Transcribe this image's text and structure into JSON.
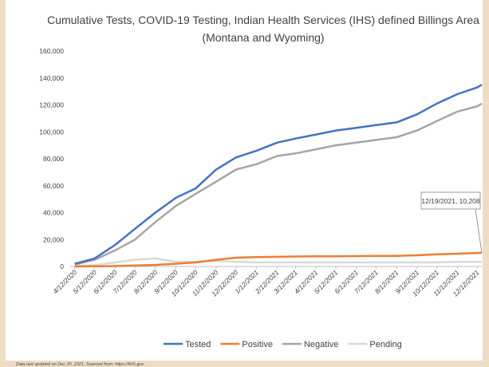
{
  "chart_data": {
    "type": "line",
    "title_lines": [
      "Cumulative Tests, COVID-19 Testing, Indian Health Services (IHS) defined Billings Area",
      "(Montana and Wyoming)"
    ],
    "x": [
      "4/12/2020",
      "5/12/2020",
      "6/12/2020",
      "7/12/2020",
      "8/12/2020",
      "9/12/2020",
      "10/12/2020",
      "11/12/2020",
      "12/12/2020",
      "1/12/2021",
      "2/12/2021",
      "3/12/2021",
      "4/12/2021",
      "5/12/2021",
      "6/12/2021",
      "7/12/2021",
      "8/12/2021",
      "9/12/2021",
      "10/12/2021",
      "11/12/2021",
      "12/12/2021",
      "12/19/2021"
    ],
    "xlim": [
      "4/5/2020",
      "12/19/2021"
    ],
    "xticks": [
      "4/12/2020",
      "5/12/2020",
      "6/12/2020",
      "7/12/2020",
      "8/12/2020",
      "9/12/2020",
      "10/12/2020",
      "11/12/2020",
      "12/12/2020",
      "1/12/2021",
      "2/12/2021",
      "3/12/2021",
      "4/12/2021",
      "5/12/2021",
      "6/12/2021",
      "7/12/2021",
      "8/12/2021",
      "9/12/2021",
      "10/12/2021",
      "11/12/2021",
      "12/12/2021"
    ],
    "series": [
      {
        "name": "Tested",
        "color": "#4472c4",
        "values": [
          2000,
          6000,
          16000,
          28000,
          40000,
          51000,
          58000,
          72000,
          81000,
          86000,
          92000,
          95000,
          98000,
          101000,
          103000,
          105000,
          107000,
          113000,
          121000,
          128000,
          133000,
          135000
        ]
      },
      {
        "name": "Positive",
        "color": "#ed7d31",
        "values": [
          0,
          100,
          300,
          700,
          1200,
          2000,
          3000,
          5000,
          6500,
          7000,
          7200,
          7400,
          7500,
          7600,
          7700,
          7800,
          7900,
          8300,
          9000,
          9500,
          10000,
          10208
        ]
      },
      {
        "name": "Negative",
        "color": "#a5a5a5",
        "values": [
          1500,
          5000,
          12000,
          20000,
          33000,
          45000,
          54000,
          63000,
          72000,
          76000,
          82000,
          84000,
          87000,
          90000,
          92000,
          94000,
          96000,
          101000,
          108000,
          115000,
          119000,
          121000
        ]
      },
      {
        "name": "Pending",
        "color": "#d9d9d9",
        "values": [
          500,
          1000,
          3000,
          5000,
          6000,
          3500,
          3500,
          4000,
          3500,
          3000,
          3000,
          3000,
          3000,
          3000,
          3000,
          3000,
          3000,
          3000,
          3000,
          3500,
          3500,
          3500
        ]
      }
    ],
    "ylim": [
      0,
      160000
    ],
    "yticks": [
      {
        "value": 0,
        "label": "0"
      },
      {
        "value": 20000,
        "label": "20,000"
      },
      {
        "value": 40000,
        "label": "40,000"
      },
      {
        "value": 60000,
        "label": "60,000"
      },
      {
        "value": 80000,
        "label": "80,000"
      },
      {
        "value": 100000,
        "label": "100,000"
      },
      {
        "value": 120000,
        "label": "120,000"
      },
      {
        "value": 140000,
        "label": "140,000"
      },
      {
        "value": 160000,
        "label": "160,000"
      }
    ],
    "annotation": "12/19/2021, 10,208",
    "legend": "bottom",
    "footer": "Data last updated on Dec 20, 2021. Sourced from: https://IHS.gov"
  }
}
